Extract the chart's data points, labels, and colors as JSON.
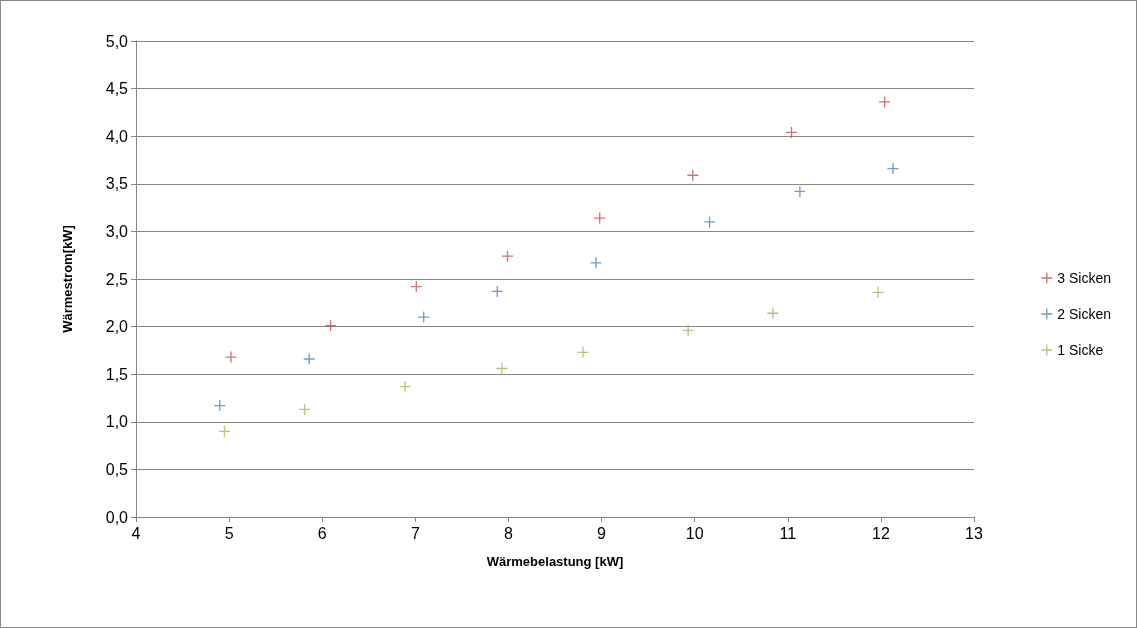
{
  "chart_data": {
    "type": "scatter",
    "xlabel": "Wärmebelastung [kW]",
    "ylabel": "Wärmestrom[kW]",
    "xlim": [
      4,
      13
    ],
    "xticks": [
      4,
      5,
      6,
      7,
      8,
      9,
      10,
      11,
      12,
      13
    ],
    "ylim": [
      0,
      5
    ],
    "yticks": [
      {
        "value": 0,
        "label": "0,0"
      },
      {
        "value": 0.5,
        "label": "0,5"
      },
      {
        "value": 1,
        "label": "1,0"
      },
      {
        "value": 1.5,
        "label": "1,5"
      },
      {
        "value": 2,
        "label": "2,0"
      },
      {
        "value": 2.5,
        "label": "2,5"
      },
      {
        "value": 3,
        "label": "3,0"
      },
      {
        "value": 3.5,
        "label": "3,5"
      },
      {
        "value": 4,
        "label": "4,0"
      },
      {
        "value": 4.5,
        "label": "4,5"
      },
      {
        "value": 5,
        "label": "5,0"
      }
    ],
    "grid": "y",
    "legend": "right",
    "marker": "cross",
    "series": [
      {
        "name": "3 Sicken",
        "color": "#c0504d",
        "x": [
          5.02,
          6.09,
          7.01,
          7.99,
          8.98,
          9.98,
          11.04,
          12.04
        ],
        "values": [
          1.68,
          2.01,
          2.42,
          2.74,
          3.14,
          3.59,
          4.04,
          4.36
        ]
      },
      {
        "name": "2 Sicken",
        "color": "#4f81bd",
        "x": [
          4.9,
          5.86,
          7.09,
          7.88,
          8.94,
          10.16,
          11.13,
          12.13
        ],
        "values": [
          1.17,
          1.66,
          2.1,
          2.37,
          2.67,
          3.1,
          3.42,
          3.66
        ]
      },
      {
        "name": "1 Sicke",
        "color": "#9bbb59",
        "x": [
          4.95,
          5.81,
          6.89,
          7.93,
          8.8,
          9.93,
          10.84,
          11.97
        ],
        "values": [
          0.9,
          1.13,
          1.37,
          1.56,
          1.73,
          1.96,
          2.14,
          2.36
        ]
      }
    ]
  }
}
